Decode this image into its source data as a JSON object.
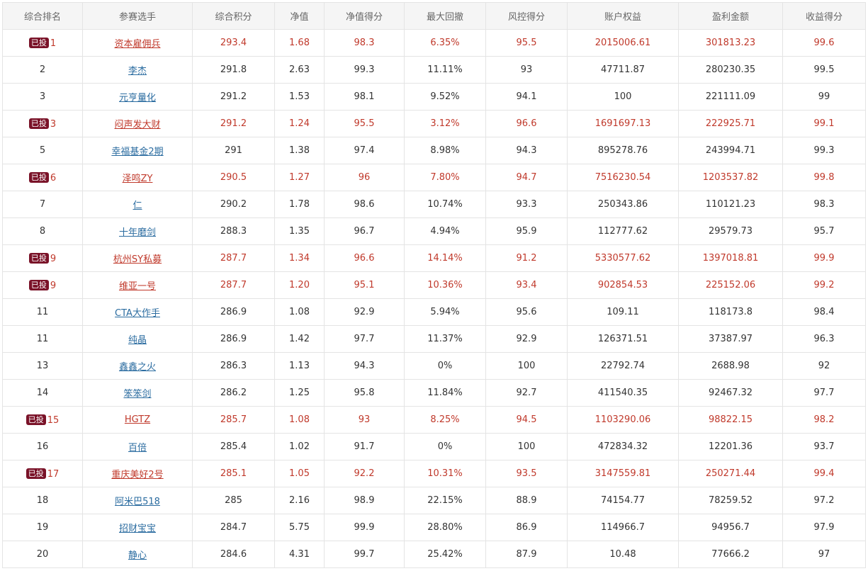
{
  "badge_label": "已投",
  "columns": [
    "综合排名",
    "参赛选手",
    "综合积分",
    "净值",
    "净值得分",
    "最大回撤",
    "风控得分",
    "账户权益",
    "盈利金额",
    "收益得分"
  ],
  "colors": {
    "invested_text": "#c0392b",
    "link_blue": "#2b6ca0",
    "badge_bg": "#7a1228"
  },
  "rows": [
    {
      "invested": true,
      "rank": "1",
      "player": "资本雇佣兵",
      "score": "293.4",
      "nav": "1.68",
      "nav_score": "98.3",
      "max_drawdown": "6.35%",
      "risk_score": "95.5",
      "equity": "2015006.61",
      "profit": "301813.23",
      "return_score": "99.6"
    },
    {
      "invested": false,
      "rank": "2",
      "player": "李杰",
      "score": "291.8",
      "nav": "2.63",
      "nav_score": "99.3",
      "max_drawdown": "11.11%",
      "risk_score": "93",
      "equity": "47711.87",
      "profit": "280230.35",
      "return_score": "99.5"
    },
    {
      "invested": false,
      "rank": "3",
      "player": "元亨量化",
      "score": "291.2",
      "nav": "1.53",
      "nav_score": "98.1",
      "max_drawdown": "9.52%",
      "risk_score": "94.1",
      "equity": "100",
      "profit": "221111.09",
      "return_score": "99"
    },
    {
      "invested": true,
      "rank": "3",
      "player": "闷声发大财",
      "score": "291.2",
      "nav": "1.24",
      "nav_score": "95.5",
      "max_drawdown": "3.12%",
      "risk_score": "96.6",
      "equity": "1691697.13",
      "profit": "222925.71",
      "return_score": "99.1"
    },
    {
      "invested": false,
      "rank": "5",
      "player": "幸福基金2期",
      "score": "291",
      "nav": "1.38",
      "nav_score": "97.4",
      "max_drawdown": "8.98%",
      "risk_score": "94.3",
      "equity": "895278.76",
      "profit": "243994.71",
      "return_score": "99.3"
    },
    {
      "invested": true,
      "rank": "6",
      "player": "泽鸣ZY",
      "score": "290.5",
      "nav": "1.27",
      "nav_score": "96",
      "max_drawdown": "7.80%",
      "risk_score": "94.7",
      "equity": "7516230.54",
      "profit": "1203537.82",
      "return_score": "99.8"
    },
    {
      "invested": false,
      "rank": "7",
      "player": "仁",
      "score": "290.2",
      "nav": "1.78",
      "nav_score": "98.6",
      "max_drawdown": "10.74%",
      "risk_score": "93.3",
      "equity": "250343.86",
      "profit": "110121.23",
      "return_score": "98.3"
    },
    {
      "invested": false,
      "rank": "8",
      "player": "十年磨剑",
      "score": "288.3",
      "nav": "1.35",
      "nav_score": "96.7",
      "max_drawdown": "4.94%",
      "risk_score": "95.9",
      "equity": "112777.62",
      "profit": "29579.73",
      "return_score": "95.7"
    },
    {
      "invested": true,
      "rank": "9",
      "player": "杭州SY私募",
      "score": "287.7",
      "nav": "1.34",
      "nav_score": "96.6",
      "max_drawdown": "14.14%",
      "risk_score": "91.2",
      "equity": "5330577.62",
      "profit": "1397018.81",
      "return_score": "99.9"
    },
    {
      "invested": true,
      "rank": "9",
      "player": "维亚一号",
      "score": "287.7",
      "nav": "1.20",
      "nav_score": "95.1",
      "max_drawdown": "10.36%",
      "risk_score": "93.4",
      "equity": "902854.53",
      "profit": "225152.06",
      "return_score": "99.2"
    },
    {
      "invested": false,
      "rank": "11",
      "player": "CTA大作手",
      "score": "286.9",
      "nav": "1.08",
      "nav_score": "92.9",
      "max_drawdown": "5.94%",
      "risk_score": "95.6",
      "equity": "109.11",
      "profit": "118173.8",
      "return_score": "98.4"
    },
    {
      "invested": false,
      "rank": "11",
      "player": "纯晶",
      "score": "286.9",
      "nav": "1.42",
      "nav_score": "97.7",
      "max_drawdown": "11.37%",
      "risk_score": "92.9",
      "equity": "126371.51",
      "profit": "37387.97",
      "return_score": "96.3"
    },
    {
      "invested": false,
      "rank": "13",
      "player": "鑫鑫之火",
      "score": "286.3",
      "nav": "1.13",
      "nav_score": "94.3",
      "max_drawdown": "0%",
      "risk_score": "100",
      "equity": "22792.74",
      "profit": "2688.98",
      "return_score": "92"
    },
    {
      "invested": false,
      "rank": "14",
      "player": "笨笨剑",
      "score": "286.2",
      "nav": "1.25",
      "nav_score": "95.8",
      "max_drawdown": "11.84%",
      "risk_score": "92.7",
      "equity": "411540.35",
      "profit": "92467.32",
      "return_score": "97.7"
    },
    {
      "invested": true,
      "rank": "15",
      "player": "HGTZ",
      "score": "285.7",
      "nav": "1.08",
      "nav_score": "93",
      "max_drawdown": "8.25%",
      "risk_score": "94.5",
      "equity": "1103290.06",
      "profit": "98822.15",
      "return_score": "98.2"
    },
    {
      "invested": false,
      "rank": "16",
      "player": "百倍",
      "score": "285.4",
      "nav": "1.02",
      "nav_score": "91.7",
      "max_drawdown": "0%",
      "risk_score": "100",
      "equity": "472834.32",
      "profit": "12201.36",
      "return_score": "93.7"
    },
    {
      "invested": true,
      "rank": "17",
      "player": "重庆美好2号",
      "score": "285.1",
      "nav": "1.05",
      "nav_score": "92.2",
      "max_drawdown": "10.31%",
      "risk_score": "93.5",
      "equity": "3147559.81",
      "profit": "250271.44",
      "return_score": "99.4"
    },
    {
      "invested": false,
      "rank": "18",
      "player": "阿米巴518",
      "score": "285",
      "nav": "2.16",
      "nav_score": "98.9",
      "max_drawdown": "22.15%",
      "risk_score": "88.9",
      "equity": "74154.77",
      "profit": "78259.52",
      "return_score": "97.2"
    },
    {
      "invested": false,
      "rank": "19",
      "player": "招财宝宝",
      "score": "284.7",
      "nav": "5.75",
      "nav_score": "99.9",
      "max_drawdown": "28.80%",
      "risk_score": "86.9",
      "equity": "114966.7",
      "profit": "94956.7",
      "return_score": "97.9"
    },
    {
      "invested": false,
      "rank": "20",
      "player": "静心",
      "score": "284.6",
      "nav": "4.31",
      "nav_score": "99.7",
      "max_drawdown": "25.42%",
      "risk_score": "87.9",
      "equity": "10.48",
      "profit": "77666.2",
      "return_score": "97"
    }
  ]
}
